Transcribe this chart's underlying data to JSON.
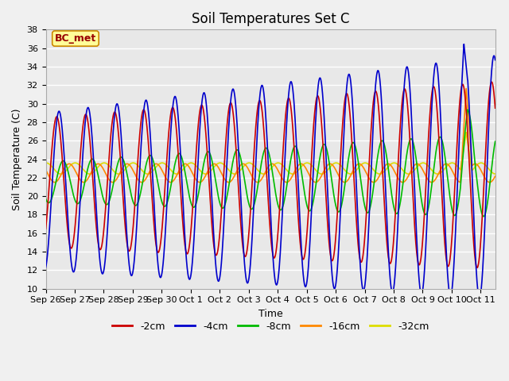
{
  "title": "Soil Temperatures Set C",
  "xlabel": "Time",
  "ylabel": "Soil Temperature (C)",
  "ylim": [
    10,
    38
  ],
  "yticks": [
    10,
    12,
    14,
    16,
    18,
    20,
    22,
    24,
    26,
    28,
    30,
    32,
    34,
    36,
    38
  ],
  "colors": {
    "-2cm": "#cc0000",
    "-4cm": "#0000cc",
    "-8cm": "#00bb00",
    "-16cm": "#ff8800",
    "-32cm": "#dddd00"
  },
  "annotation_text": "BC_met",
  "annotation_bg": "#ffff99",
  "annotation_border": "#cc8800",
  "annotation_text_color": "#990000",
  "plot_bg": "#e8e8e8",
  "fig_bg": "#f0f0f0",
  "grid_color": "#ffffff",
  "title_fontsize": 12,
  "axis_label_fontsize": 9,
  "tick_fontsize": 8,
  "tick_labels": [
    "Sep 26",
    "Sep 27",
    "Sep 28",
    "Sep 29",
    "Sep 30",
    "Oct 1",
    "Oct 2",
    "Oct 3",
    "Oct 4",
    "Oct 5",
    "Oct 6",
    "Oct 7",
    "Oct 8",
    "Oct 9",
    "Oct 10",
    "Oct 11"
  ],
  "n_days": 15.5
}
